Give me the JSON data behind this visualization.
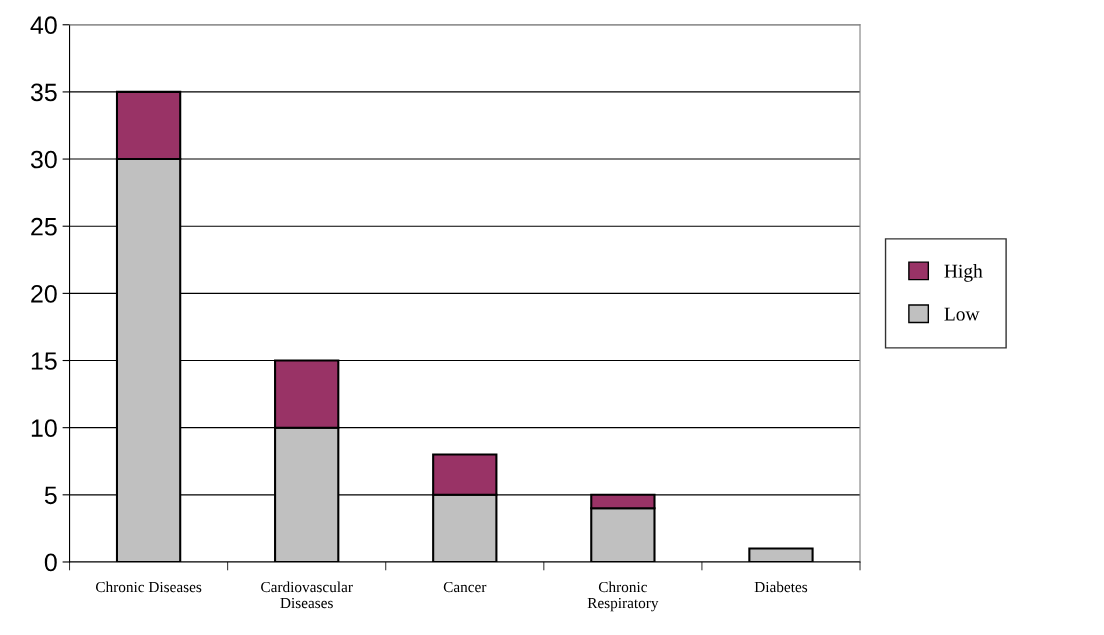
{
  "chart_data": {
    "type": "bar",
    "stacked": true,
    "categories": [
      "Chronic Diseases",
      "Cardiovascular\nDiseases",
      "Cancer",
      "Chronic\nRespiratory",
      "Diabetes"
    ],
    "series": [
      {
        "name": "Low",
        "color": "#c0c0c0",
        "values": [
          30,
          10,
          5,
          4,
          1
        ]
      },
      {
        "name": "High",
        "color": "#993366",
        "values": [
          5,
          5,
          3,
          1,
          null
        ]
      }
    ],
    "ylim": [
      0,
      40
    ],
    "yticks": [
      0,
      5,
      10,
      15,
      20,
      25,
      30,
      35,
      40
    ],
    "grid": "y",
    "legend": "right"
  }
}
